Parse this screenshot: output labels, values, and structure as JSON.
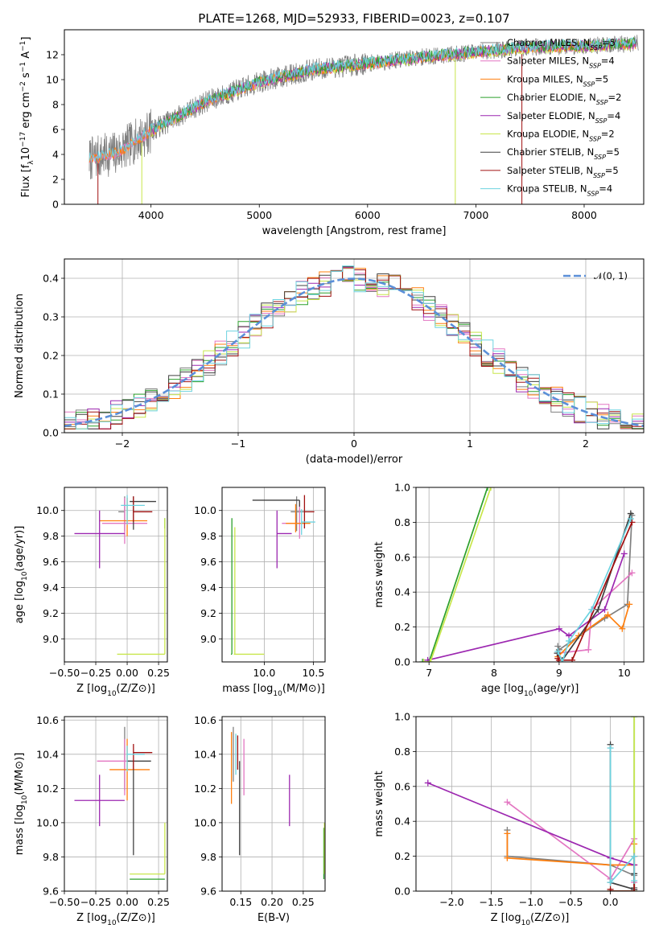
{
  "title": "PLATE=1268, MJD=52933, FIBERID=0023, z=0.107",
  "colors": {
    "Chabrier MILES": "#808080",
    "Salpeter MILES": "#e377c2",
    "Kroupa MILES": "#ff7f0e",
    "Chabrier ELODIE": "#2ca02c",
    "Salpeter ELODIE": "#9c27b0",
    "Kroupa ELODIE": "#c8e64b",
    "Chabrier STELIB": "#404040",
    "Salpeter STELIB": "#a01010",
    "Kroupa STELIB": "#6dd3e0",
    "gauss": "#5b8fd8"
  },
  "chart_data": [
    {
      "type": "line",
      "panel": "spectrum",
      "xlabel": "wavelength [Angstrom, rest frame]",
      "ylabel": "Flux [f_λ10^-17 erg cm^-2 s^-1 A^-1]",
      "xlim": [
        3200,
        8550
      ],
      "ylim": [
        0,
        14
      ],
      "xticks": [
        4000,
        5000,
        6000,
        7000,
        8000
      ],
      "yticks": [
        0,
        2,
        4,
        6,
        8,
        10,
        12
      ],
      "grid": false,
      "legend_position": "right",
      "legend": [
        {
          "label": "Chabrier MILES, N_SSP=5",
          "color": "Chabrier MILES"
        },
        {
          "label": "Salpeter MILES, N_SSP=4",
          "color": "Salpeter MILES"
        },
        {
          "label": "Kroupa MILES, N_SSP=5",
          "color": "Kroupa MILES"
        },
        {
          "label": "Chabrier ELODIE, N_SSP=2",
          "color": "Chabrier ELODIE"
        },
        {
          "label": "Salpeter ELODIE, N_SSP=4",
          "color": "Salpeter ELODIE"
        },
        {
          "label": "Kroupa ELODIE, N_SSP=2",
          "color": "Kroupa ELODIE"
        },
        {
          "label": "Chabrier STELIB, N_SSP=5",
          "color": "Chabrier STELIB"
        },
        {
          "label": "Salpeter STELIB, N_SSP=5",
          "color": "Salpeter STELIB"
        },
        {
          "label": "Kroupa STELIB, N_SSP=4",
          "color": "Kroupa STELIB"
        }
      ],
      "continuum": {
        "wavelength": [
          3430,
          3700,
          4000,
          4500,
          5000,
          5500,
          6000,
          6500,
          7000,
          7500,
          8000,
          8500
        ],
        "flux": [
          3.6,
          4.2,
          5.9,
          8.2,
          9.8,
          10.8,
          11.3,
          11.8,
          12.2,
          12.6,
          12.7,
          12.9
        ]
      }
    },
    {
      "type": "step",
      "panel": "residuals",
      "xlabel": "(data-model)/error",
      "ylabel": "Normed distribution",
      "xlim": [
        -2.5,
        2.5
      ],
      "ylim": [
        0,
        0.45
      ],
      "xticks": [
        -2,
        -1,
        0,
        1,
        2
      ],
      "yticks": [
        0.0,
        0.1,
        0.2,
        0.3,
        0.4
      ],
      "grid": true,
      "legend": [
        {
          "label": "𝒩(0, 1)",
          "color": "gauss"
        }
      ],
      "legend_position": "top-right",
      "bin_width": 0.1
    },
    {
      "type": "errorbar",
      "panel": "age-vs-Z",
      "xlabel": "Z [log10(Z/Z⊙)]",
      "ylabel": "age  [log10(age/yr)]",
      "xlim": [
        -0.5,
        0.32
      ],
      "ylim": [
        8.82,
        10.18
      ],
      "xticks": [
        -0.5,
        -0.25,
        0.0,
        0.25
      ],
      "xticklabels": [
        "−0.50",
        "−0.25",
        "0.00",
        "0.25"
      ],
      "yticks": [
        9.0,
        9.2,
        9.4,
        9.6,
        9.8,
        10.0
      ],
      "grid": true,
      "points": [
        {
          "model": "Chabrier MILES",
          "x": -0.02,
          "xerr": [
            0.05,
            0.0
          ],
          "y": 9.99,
          "yerr": [
            0.15,
            0.12
          ]
        },
        {
          "model": "Salpeter MILES",
          "x": -0.02,
          "xerr": [
            0.18,
            0.18
          ],
          "y": 9.9,
          "yerr": [
            0.16,
            0.2
          ]
        },
        {
          "model": "Kroupa MILES",
          "x": 0.0,
          "xerr": [
            0.22,
            0.16
          ],
          "y": 9.92,
          "yerr": [
            0.12,
            0.18
          ]
        },
        {
          "model": "Chabrier ELODIE",
          "x": 0.3,
          "xerr": [
            0.0,
            0.0
          ],
          "y": 9.92,
          "yerr": [
            0.06,
            0.02
          ]
        },
        {
          "model": "Salpeter ELODIE",
          "x": -0.22,
          "xerr": [
            0.2,
            0.2
          ],
          "y": 9.82,
          "yerr": [
            0.27,
            0.18
          ]
        },
        {
          "model": "Kroupa ELODIE",
          "x": 0.3,
          "xerr": [
            0.38,
            0.0
          ],
          "y": 8.88,
          "yerr": [
            0.0,
            1.06
          ]
        },
        {
          "model": "Chabrier STELIB",
          "x": 0.05,
          "xerr": [
            0.03,
            0.18
          ],
          "y": 10.07,
          "yerr": [
            0.22,
            0.04
          ]
        },
        {
          "model": "Salpeter STELIB",
          "x": 0.05,
          "xerr": [
            0.0,
            0.15
          ],
          "y": 9.99,
          "yerr": [
            0.08,
            0.12
          ]
        },
        {
          "model": "Kroupa STELIB",
          "x": 0.0,
          "xerr": [
            0.05,
            0.14
          ],
          "y": 10.04,
          "yerr": [
            0.15,
            0.08
          ]
        }
      ]
    },
    {
      "type": "errorbar",
      "panel": "age-vs-mass",
      "xlabel": "mass [log10(M/M⊙)]",
      "ylabel": "",
      "xlim": [
        9.57,
        10.62
      ],
      "ylim": [
        8.82,
        10.18
      ],
      "xticks": [
        10.0,
        10.5
      ],
      "xticklabels": [
        "10.0",
        "10.5"
      ],
      "yticks": [
        9.0,
        9.2,
        9.4,
        9.6,
        9.8,
        10.0
      ],
      "grid": true,
      "points": [
        {
          "model": "Chabrier MILES",
          "x": 10.33,
          "xerr": [
            0.06,
            0.08
          ],
          "y": 9.99,
          "yerr": [
            0.15,
            0.12
          ]
        },
        {
          "model": "Salpeter MILES",
          "x": 10.36,
          "xerr": [
            0.18,
            0.0
          ],
          "y": 9.9,
          "yerr": [
            0.12,
            0.17
          ]
        },
        {
          "model": "Kroupa MILES",
          "x": 10.32,
          "xerr": [
            0.1,
            0.15
          ],
          "y": 9.9,
          "yerr": [
            0.07,
            0.15
          ]
        },
        {
          "model": "Chabrier ELODIE",
          "x": 9.67,
          "xerr": [
            0.01,
            0.0
          ],
          "y": 8.88,
          "yerr": [
            0.0,
            1.06
          ]
        },
        {
          "model": "Salpeter ELODIE",
          "x": 10.13,
          "xerr": [
            0.0,
            0.15
          ],
          "y": 9.82,
          "yerr": [
            0.27,
            0.18
          ]
        },
        {
          "model": "Kroupa ELODIE",
          "x": 9.7,
          "xerr": [
            0.01,
            0.3
          ],
          "y": 8.88,
          "yerr": [
            0.0,
            0.99
          ]
        },
        {
          "model": "Chabrier STELIB",
          "x": 10.36,
          "xerr": [
            0.48,
            0.0
          ],
          "y": 10.08,
          "yerr": [
            0.05,
            0.0
          ]
        },
        {
          "model": "Salpeter STELIB",
          "x": 10.41,
          "xerr": [
            0.0,
            0.1
          ],
          "y": 9.99,
          "yerr": [
            0.13,
            0.13
          ]
        },
        {
          "model": "Kroupa STELIB",
          "x": 10.38,
          "xerr": [
            0.0,
            0.14
          ],
          "y": 9.91,
          "yerr": [
            0.1,
            0.1
          ]
        }
      ]
    },
    {
      "type": "line",
      "panel": "mass-weight-vs-age",
      "xlabel": "age  [log10(age/yr)]",
      "ylabel": "mass weight",
      "xlim": [
        6.8,
        10.3
      ],
      "ylim": [
        0,
        1
      ],
      "xticks": [
        7,
        8,
        9,
        10
      ],
      "yticks": [
        0.0,
        0.2,
        0.4,
        0.6,
        0.8,
        1.0
      ],
      "grid": true,
      "series": [
        {
          "model": "Chabrier MILES",
          "x": [
            8.98,
            9.0,
            9.7,
            10.05,
            10.12
          ],
          "y": [
            0.09,
            0.07,
            0.25,
            0.33,
            0.84
          ]
        },
        {
          "model": "Salpeter MILES",
          "x": [
            8.98,
            9.45,
            9.5,
            10.12
          ],
          "y": [
            0.05,
            0.07,
            0.3,
            0.51
          ]
        },
        {
          "model": "Kroupa MILES",
          "x": [
            8.98,
            9.3,
            9.75,
            9.97,
            10.08
          ],
          "y": [
            0.03,
            0.15,
            0.27,
            0.19,
            0.33
          ]
        },
        {
          "model": "Chabrier ELODIE",
          "x": [
            6.9,
            7.0,
            7.9
          ],
          "y": [
            0.0,
            0.0,
            1.0
          ]
        },
        {
          "model": "Salpeter ELODIE",
          "x": [
            6.98,
            9.0,
            9.15,
            9.7,
            10.0
          ],
          "y": [
            0.01,
            0.19,
            0.15,
            0.3,
            0.62
          ]
        },
        {
          "model": "Kroupa ELODIE",
          "x": [
            6.92,
            7.02,
            7.95
          ],
          "y": [
            0.0,
            0.0,
            1.0
          ]
        },
        {
          "model": "Chabrier STELIB",
          "x": [
            8.97,
            9.05,
            9.6,
            10.1
          ],
          "y": [
            0.05,
            0.01,
            0.3,
            0.85
          ]
        },
        {
          "model": "Salpeter STELIB",
          "x": [
            8.98,
            9.0,
            9.2,
            10.12
          ],
          "y": [
            0.02,
            0.01,
            0.01,
            0.8
          ]
        },
        {
          "model": "Kroupa STELIB",
          "x": [
            8.98,
            9.05,
            9.15,
            9.5,
            10.1
          ],
          "y": [
            0.06,
            0.0,
            0.12,
            0.3,
            0.82
          ]
        }
      ]
    },
    {
      "type": "errorbar",
      "panel": "mass-vs-Z",
      "xlabel": "Z [log10(Z/Z⊙)]",
      "ylabel": "mass [log10(M/M⊙)]",
      "xlim": [
        -0.5,
        0.32
      ],
      "ylim": [
        9.6,
        10.62
      ],
      "xticks": [
        -0.5,
        -0.25,
        0.0,
        0.25
      ],
      "xticklabels": [
        "−0.50",
        "−0.25",
        "0.00",
        "0.25"
      ],
      "yticks": [
        9.6,
        9.8,
        10.0,
        10.2,
        10.4,
        10.6
      ],
      "grid": true,
      "points": [
        {
          "model": "Chabrier MILES",
          "x": -0.02,
          "xerr": [
            0.0,
            0.0
          ],
          "y": 10.33,
          "yerr": [
            0.14,
            0.23
          ]
        },
        {
          "model": "Salpeter MILES",
          "x": -0.02,
          "xerr": [
            0.22,
            0.05
          ],
          "y": 10.36,
          "yerr": [
            0.2,
            0.13
          ]
        },
        {
          "model": "Kroupa MILES",
          "x": 0.0,
          "xerr": [
            0.14,
            0.18
          ],
          "y": 10.31,
          "yerr": [
            0.18,
            0.18
          ]
        },
        {
          "model": "Chabrier ELODIE",
          "x": 0.3,
          "xerr": [
            0.28,
            0.0
          ],
          "y": 9.67,
          "yerr": [
            0.0,
            0.0
          ]
        },
        {
          "model": "Salpeter ELODIE",
          "x": -0.22,
          "xerr": [
            0.2,
            0.2
          ],
          "y": 10.13,
          "yerr": [
            0.15,
            0.15
          ]
        },
        {
          "model": "Kroupa ELODIE",
          "x": 0.3,
          "xerr": [
            0.28,
            0.0
          ],
          "y": 9.7,
          "yerr": [
            0.0,
            0.3
          ]
        },
        {
          "model": "Chabrier STELIB",
          "x": 0.05,
          "xerr": [
            0.05,
            0.14
          ],
          "y": 10.36,
          "yerr": [
            0.55,
            0.0
          ]
        },
        {
          "model": "Salpeter STELIB",
          "x": 0.05,
          "xerr": [
            0.0,
            0.15
          ],
          "y": 10.41,
          "yerr": [
            0.1,
            0.05
          ]
        },
        {
          "model": "Kroupa STELIB",
          "x": 0.0,
          "xerr": [
            0.0,
            0.14
          ],
          "y": 10.4,
          "yerr": [
            0.1,
            0.05
          ]
        }
      ]
    },
    {
      "type": "errorbar",
      "panel": "mass-vs-EBV",
      "xlabel": "E(B-V)",
      "ylabel": "",
      "xlim": [
        0.12,
        0.285
      ],
      "ylim": [
        9.6,
        10.62
      ],
      "xticks": [
        0.15,
        0.2,
        0.25
      ],
      "xticklabels": [
        "0.15",
        "0.20",
        "0.25"
      ],
      "yticks": [
        9.6,
        9.8,
        10.0,
        10.2,
        10.4,
        10.6
      ],
      "grid": true,
      "points": [
        {
          "model": "Chabrier MILES",
          "x": 0.138,
          "y": 10.36,
          "yerr": [
            0.12,
            0.2
          ]
        },
        {
          "model": "Salpeter MILES",
          "x": 0.155,
          "y": 10.36,
          "yerr": [
            0.2,
            0.13
          ]
        },
        {
          "model": "Kroupa MILES",
          "x": 0.135,
          "y": 10.31,
          "yerr": [
            0.2,
            0.22
          ]
        },
        {
          "model": "Chabrier ELODIE",
          "x": 0.283,
          "y": 9.67,
          "yerr": [
            0.0,
            0.3
          ]
        },
        {
          "model": "Salpeter ELODIE",
          "x": 0.228,
          "y": 10.13,
          "yerr": [
            0.15,
            0.15
          ]
        },
        {
          "model": "Kroupa ELODIE",
          "x": 0.284,
          "y": 9.7,
          "yerr": [
            0.0,
            0.3
          ]
        },
        {
          "model": "Chabrier STELIB",
          "x": 0.148,
          "y": 10.36,
          "yerr": [
            0.55,
            0.0
          ]
        },
        {
          "model": "Salpeter STELIB",
          "x": 0.145,
          "y": 10.41,
          "yerr": [
            0.1,
            0.1
          ]
        },
        {
          "model": "Kroupa STELIB",
          "x": 0.142,
          "y": 10.4,
          "yerr": [
            0.12,
            0.12
          ]
        }
      ]
    },
    {
      "type": "line",
      "panel": "mass-weight-vs-Z",
      "xlabel": "Z [log10(Z/Z⊙)]",
      "ylabel": "mass weight",
      "xlim": [
        -2.45,
        0.42
      ],
      "ylim": [
        0,
        1
      ],
      "xticks": [
        -2.0,
        -1.5,
        -1.0,
        -0.5,
        0.0
      ],
      "xticklabels": [
        "−2.0",
        "−1.5",
        "−1.0",
        "−0.5",
        "0.0"
      ],
      "yticks": [
        0.0,
        0.2,
        0.4,
        0.6,
        0.8,
        1.0
      ],
      "grid": true,
      "series": [
        {
          "model": "Chabrier MILES",
          "x": [
            -1.3,
            -1.3,
            0.0,
            0.3,
            0.3
          ],
          "y": [
            0.35,
            0.2,
            0.15,
            0.09,
            0.02
          ]
        },
        {
          "model": "Salpeter MILES",
          "x": [
            -1.3,
            0.0,
            0.3,
            0.3
          ],
          "y": [
            0.51,
            0.07,
            0.3,
            0.05
          ]
        },
        {
          "model": "Kroupa MILES",
          "x": [
            -1.3,
            -1.3,
            0.0,
            0.3,
            0.3
          ],
          "y": [
            0.33,
            0.19,
            0.15,
            0.15,
            0.27
          ]
        },
        {
          "model": "Chabrier ELODIE",
          "x": [
            0.0,
            0.3,
            0.3
          ],
          "y": [
            0.0,
            0.0,
            1.0
          ]
        },
        {
          "model": "Salpeter ELODIE",
          "x": [
            -2.3,
            0.0,
            0.3,
            0.3
          ],
          "y": [
            0.62,
            0.19,
            0.15,
            0.01
          ]
        },
        {
          "model": "Kroupa ELODIE",
          "x": [
            0.0,
            0.3,
            0.3
          ],
          "y": [
            0.0,
            0.0,
            1.0
          ]
        },
        {
          "model": "Chabrier STELIB",
          "x": [
            0.0,
            0.0,
            0.3,
            0.3
          ],
          "y": [
            0.84,
            0.05,
            0.01,
            0.1
          ]
        },
        {
          "model": "Salpeter STELIB",
          "x": [
            0.0,
            0.0,
            0.3,
            0.3
          ],
          "y": [
            0.01,
            0.0,
            0.0,
            0.2
          ]
        },
        {
          "model": "Kroupa STELIB",
          "x": [
            0.0,
            0.0,
            0.3,
            0.3
          ],
          "y": [
            0.82,
            0.05,
            0.2,
            0.06
          ]
        }
      ]
    }
  ]
}
